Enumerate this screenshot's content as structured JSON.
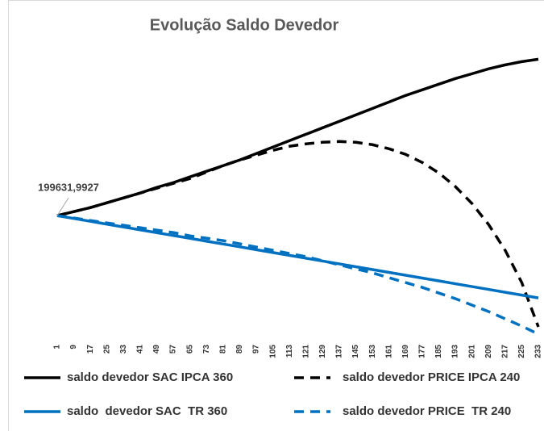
{
  "chart_data": {
    "type": "line",
    "title": "Evolução Saldo Devedor",
    "annotation": "199631,9927",
    "x": [
      1,
      9,
      17,
      25,
      33,
      41,
      49,
      57,
      65,
      73,
      81,
      89,
      97,
      105,
      113,
      121,
      129,
      137,
      145,
      153,
      161,
      169,
      177,
      185,
      193,
      201,
      209,
      217,
      225,
      233
    ],
    "xticks": [
      1,
      9,
      17,
      25,
      33,
      41,
      49,
      57,
      65,
      73,
      81,
      89,
      97,
      105,
      113,
      121,
      129,
      137,
      145,
      153,
      161,
      169,
      177,
      185,
      193,
      201,
      209,
      217,
      225,
      233
    ],
    "xlim": [
      1,
      240
    ],
    "ylim": [
      0,
      450000
    ],
    "series": [
      {
        "name": "saldo devedor SAC IPCA 360",
        "color": "#000000",
        "style": "solid",
        "values": [
          199632,
          206000,
          212500,
          220200,
          228000,
          235700,
          244700,
          252400,
          261500,
          270500,
          279500,
          288500,
          298800,
          309100,
          319400,
          329700,
          340000,
          350300,
          360600,
          370900,
          381200,
          391600,
          400600,
          409600,
          418600,
          426300,
          434100,
          440500,
          445600,
          449500
        ]
      },
      {
        "name": "saldo devedor PRICE IPCA 240",
        "color": "#000000",
        "style": "dashed",
        "values": [
          199632,
          206000,
          212500,
          220200,
          228000,
          235700,
          243400,
          251200,
          258900,
          269200,
          279500,
          288500,
          296200,
          304000,
          310400,
          314300,
          316800,
          318100,
          316800,
          313000,
          306500,
          297500,
          284600,
          267900,
          246000,
          219000,
          185500,
          144300,
          92700,
          21900
        ]
      },
      {
        "name": "saldo  devedor SAC  TR 360",
        "color": "#0070c0",
        "style": "solid",
        "values": [
          199632,
          195100,
          190600,
          186000,
          181500,
          177000,
          172400,
          167900,
          163400,
          158800,
          154300,
          149800,
          145200,
          140700,
          136200,
          131600,
          127100,
          122600,
          118000,
          113500,
          109000,
          104400,
          99900,
          95400,
          90800,
          86300,
          81800,
          77200,
          72700,
          68200
        ]
      },
      {
        "name": "saldo devedor PRICE  TR 240",
        "color": "#0070c0",
        "style": "dashed",
        "values": [
          199632,
          195800,
          191900,
          188000,
          184200,
          180300,
          176500,
          172600,
          167400,
          163600,
          159700,
          154600,
          149400,
          144300,
          139100,
          134000,
          127500,
          121100,
          114600,
          108200,
          100500,
          92700,
          85000,
          76000,
          67000,
          56700,
          46400,
          34800,
          23200,
          10300
        ]
      }
    ]
  }
}
